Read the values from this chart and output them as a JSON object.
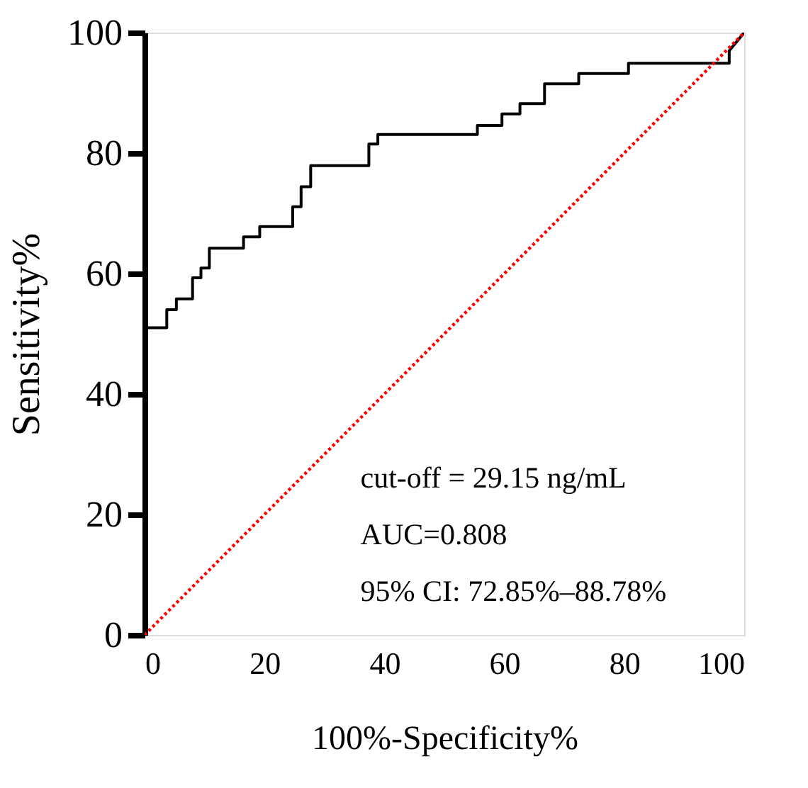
{
  "chart_data": {
    "type": "line",
    "xlabel": "100%-Specificity%",
    "ylabel": "Sensitivity%",
    "xlim": [
      0,
      100
    ],
    "ylim": [
      0,
      100
    ],
    "xticks": [
      0,
      20,
      40,
      60,
      80,
      100
    ],
    "yticks": [
      0,
      20,
      40,
      60,
      80,
      100
    ],
    "grid": false,
    "marker": "none",
    "series": [
      {
        "color": "#000000",
        "line_style": "solid",
        "x": [
          0,
          0,
          3.7,
          3.7,
          5.3,
          5.3,
          8.0,
          8.0,
          9.4,
          9.4,
          10.8,
          10.8,
          16.5,
          16.5,
          19.2,
          19.2,
          24.7,
          24.7,
          26.1,
          26.1,
          27.7,
          27.7,
          37.4,
          37.4,
          38.9,
          38.9,
          55.5,
          55.5,
          59.6,
          59.6,
          62.6,
          62.6,
          66.7,
          66.7,
          72.4,
          72.4,
          80.7,
          80.7,
          97.5,
          97.5,
          100
        ],
        "values": [
          0,
          51,
          51,
          54.0,
          54.0,
          55.8,
          55.8,
          59.3,
          59.3,
          60.9,
          60.9,
          64.2,
          64.2,
          66.1,
          66.1,
          67.8,
          67.8,
          71.1,
          71.1,
          74.4,
          74.4,
          77.9,
          77.9,
          81.5,
          81.5,
          83.1,
          83.1,
          84.6,
          84.6,
          86.5,
          86.5,
          88.2,
          88.2,
          91.5,
          91.5,
          93.2,
          93.2,
          94.9,
          94.9,
          97,
          100
        ]
      },
      {
        "color": "#ff0000",
        "line_style": "dotted",
        "x": [
          0,
          100
        ],
        "values": [
          0,
          100
        ]
      }
    ],
    "annotations": [
      "cut-off = 29.15 ng/mL",
      "AUC=0.808",
      "95% CI: 72.85%–88.78%"
    ]
  }
}
